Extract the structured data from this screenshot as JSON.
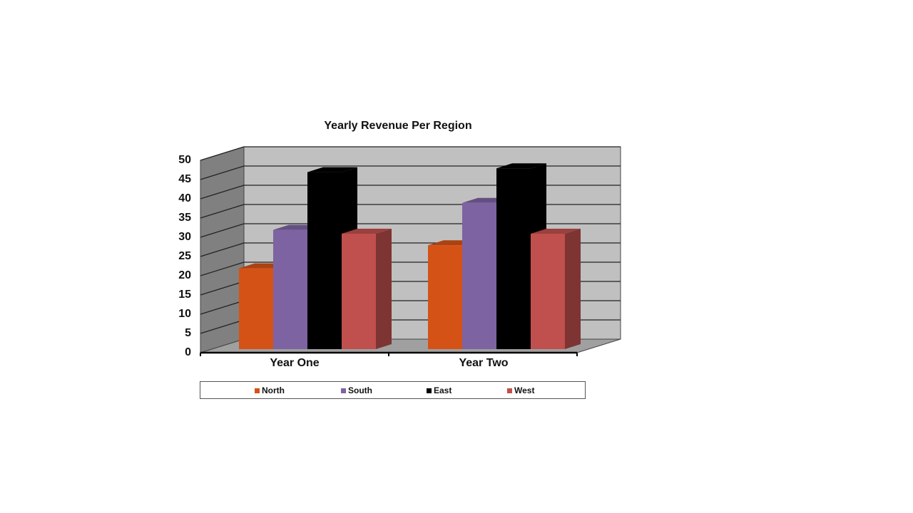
{
  "chart_data": {
    "type": "bar",
    "style": "3d-clustered-column",
    "title": "Yearly Revenue Per Region",
    "xlabel": "",
    "ylabel": "",
    "categories": [
      "Year One",
      "Year Two"
    ],
    "series": [
      {
        "name": "North",
        "color": "#D55217",
        "values": [
          21,
          27
        ]
      },
      {
        "name": "South",
        "color": "#7E63A2",
        "values": [
          31,
          38
        ]
      },
      {
        "name": "East",
        "color": "#000000",
        "values": [
          46,
          47
        ]
      },
      {
        "name": "West",
        "color": "#C0504D",
        "values": [
          30,
          30
        ]
      }
    ],
    "ylim": [
      0,
      50
    ],
    "yticks": [
      "0",
      "5",
      "10",
      "15",
      "20",
      "25",
      "30",
      "35",
      "40",
      "45",
      "50"
    ],
    "grid": true,
    "legend_position": "bottom"
  },
  "colors": {
    "back_wall": "#C0C0C0",
    "side_wall": "#808080",
    "floor": "#A0A0A0",
    "gridline": "#222222"
  }
}
